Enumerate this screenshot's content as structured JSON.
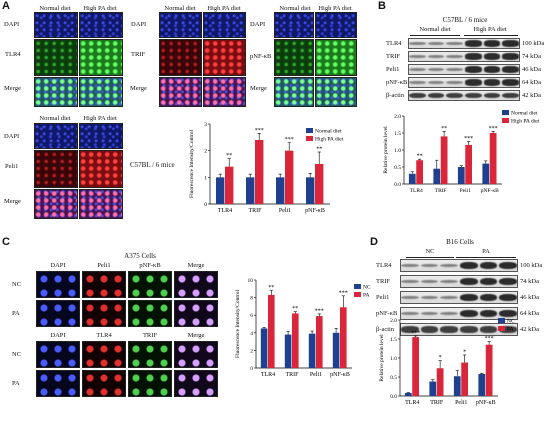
{
  "panel_A": {
    "label": "A",
    "col_normal": "Normal diet",
    "col_high": "High PA diet",
    "rows_group1": [
      "DAPI",
      "TLR4",
      "Merge"
    ],
    "rows_group2": [
      "DAPI",
      "TRIF",
      "Merge"
    ],
    "rows_group3": [
      "DAPI",
      "pNF-κB",
      "Merge"
    ],
    "rows_group4": [
      "DAPI",
      "Peli1",
      "Merge"
    ],
    "mouse_label": "C57BL / 6 mice"
  },
  "panel_B": {
    "label": "B",
    "title": "C57BL / 6 mice",
    "col_normal": "Normal diet",
    "col_high": "High PA diet",
    "blot_labels": [
      "TLR4",
      "TRIF",
      "Peli1",
      "pNF-κB",
      "β-actin"
    ],
    "blot_sizes": [
      "100 kDa",
      "74 kDa",
      "46 kDa",
      "64 kDa",
      "42 kDa"
    ]
  },
  "panel_C": {
    "label": "C",
    "title": "A375 Cells",
    "cols_top": [
      "DAPI",
      "Peli1",
      "pNF-κB",
      "Merge"
    ],
    "cols_bottom": [
      "DAPI",
      "TLR4",
      "TRIF",
      "Merge"
    ],
    "rows": [
      "NC",
      "PA"
    ]
  },
  "panel_D": {
    "label": "D",
    "title": "B16 Cells",
    "col_nc": "NC",
    "col_pa": "PA",
    "blot_labels": [
      "TLR4",
      "TRIF",
      "Peli1",
      "pNF-κB",
      "β-actin"
    ],
    "blot_sizes": [
      "100 kDa",
      "74 kDa",
      "46 kDa",
      "64 kDa",
      "42 kDa"
    ]
  },
  "colors": {
    "control": "#1f3f8f",
    "treated": "#d9263b"
  },
  "chart_data": [
    {
      "id": "chartA",
      "type": "bar",
      "categories": [
        "TLR4",
        "TRIF",
        "Peli1",
        "pNF-κB"
      ],
      "ylabel": "Fluorescence Intensity/Control",
      "ylim": [
        0,
        3
      ],
      "yticks": [
        "0",
        "1",
        "2",
        "3"
      ],
      "legend_position": "top-right",
      "series": [
        {
          "name": "Normal diet",
          "values": [
            1.0,
            1.0,
            1.0,
            1.0
          ],
          "errors": [
            0.12,
            0.12,
            0.12,
            0.15
          ]
        },
        {
          "name": "High PA diet",
          "values": [
            1.4,
            2.4,
            2.0,
            1.5
          ],
          "errors": [
            0.3,
            0.25,
            0.3,
            0.45
          ]
        }
      ],
      "sig": [
        "**",
        "***",
        "***",
        "**"
      ]
    },
    {
      "id": "chartB",
      "type": "bar",
      "categories": [
        "TLR4",
        "TRIF",
        "Peli1",
        "pNF-κB"
      ],
      "ylabel": "Relative protein level",
      "ylim": [
        0,
        2.0
      ],
      "yticks": [
        "0.0",
        "0.5",
        "1.0",
        "1.5",
        "2.0"
      ],
      "legend_position": "top-right",
      "series": [
        {
          "name": "Normal diet",
          "values": [
            0.3,
            0.45,
            0.5,
            0.6
          ],
          "errors": [
            0.06,
            0.25,
            0.04,
            0.08
          ]
        },
        {
          "name": "High PA diet",
          "values": [
            0.7,
            1.4,
            1.15,
            1.5
          ],
          "errors": [
            0.03,
            0.15,
            0.1,
            0.05
          ]
        }
      ],
      "sig": [
        "**",
        "**",
        "***",
        "***"
      ]
    },
    {
      "id": "chartC",
      "type": "bar",
      "categories": [
        "TLR4",
        "TRIF",
        "Peli1",
        "pNF-κB"
      ],
      "ylabel": "Fluorescence Intensity/Control",
      "ylim": [
        0,
        10
      ],
      "yticks": [
        "0",
        "2",
        "4",
        "6",
        "8",
        "10"
      ],
      "legend_position": "top-right",
      "series": [
        {
          "name": "NC",
          "values": [
            4.5,
            3.8,
            3.9,
            4.0
          ],
          "errors": [
            0.1,
            0.35,
            0.3,
            0.5
          ]
        },
        {
          "name": "PA",
          "values": [
            8.3,
            6.2,
            5.9,
            6.9
          ],
          "errors": [
            0.5,
            0.2,
            0.25,
            1.3
          ]
        }
      ],
      "sig": [
        "**",
        "**",
        "***",
        "***"
      ]
    },
    {
      "id": "chartD",
      "type": "bar",
      "categories": [
        "TLR4",
        "TRIF",
        "Peli1",
        "pNF-κB"
      ],
      "ylabel": "Relative protein level",
      "ylim": [
        0,
        2.0
      ],
      "yticks": [
        "0.0",
        "0.5",
        "1.0",
        "1.5",
        "2.0"
      ],
      "legend_position": "top-right",
      "series": [
        {
          "name": "NC",
          "values": [
            0.08,
            0.38,
            0.52,
            0.58
          ],
          "errors": [
            0.01,
            0.05,
            0.15,
            0.02
          ]
        },
        {
          "name": "PA",
          "values": [
            1.55,
            0.73,
            0.88,
            1.35
          ],
          "errors": [
            0.03,
            0.2,
            0.2,
            0.08
          ]
        }
      ],
      "sig": [
        "***",
        "*",
        "*",
        "***"
      ]
    }
  ]
}
